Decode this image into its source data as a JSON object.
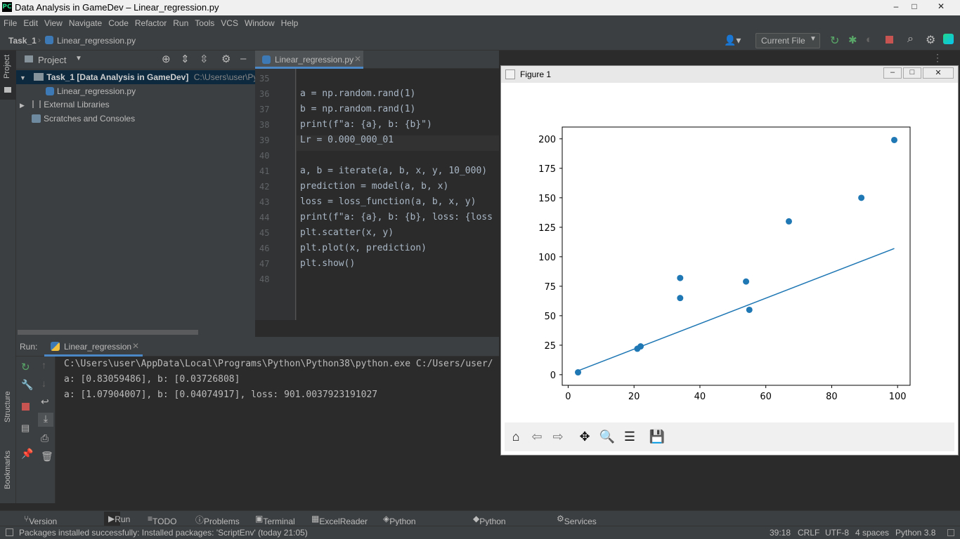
{
  "window": {
    "title": "Data Analysis in GameDev – Linear_regression.py",
    "min": "–",
    "max": "□",
    "close": "✕"
  },
  "menu": [
    "File",
    "Edit",
    "View",
    "Navigate",
    "Code",
    "Refactor",
    "Run",
    "Tools",
    "VCS",
    "Window",
    "Help"
  ],
  "nav": {
    "project": "Task_1",
    "file": "Linear_regression.py",
    "run_config": "Current File"
  },
  "project_panel": {
    "title": "Project",
    "items": [
      {
        "label": "Task_1 [Data Analysis in GameDev]",
        "path": "C:\\Users\\user\\Pych"
      },
      {
        "label": "Linear_regression.py"
      },
      {
        "label": "External Libraries"
      },
      {
        "label": "Scratches and Consoles"
      }
    ]
  },
  "left_strip": {
    "project": "Project",
    "structure": "Structure",
    "bookmarks": "Bookmarks"
  },
  "editor": {
    "tab": "Linear_regression.py",
    "lines": [
      {
        "n": "35",
        "code": ""
      },
      {
        "n": "36",
        "code": "a = np.random.rand(1)"
      },
      {
        "n": "37",
        "code": "b = np.random.rand(1)"
      },
      {
        "n": "38",
        "code": "print(f\"a: {a}, b: {b}\")"
      },
      {
        "n": "39",
        "code": "Lr = 0.000_000_01"
      },
      {
        "n": "40",
        "code": ""
      },
      {
        "n": "41",
        "code": "a, b = iterate(a, b, x, y, 10_000)"
      },
      {
        "n": "42",
        "code": "prediction = model(a, b, x)"
      },
      {
        "n": "43",
        "code": "loss = loss_function(a, b, x, y)"
      },
      {
        "n": "44",
        "code": "print(f\"a: {a}, b: {b}, loss: {loss"
      },
      {
        "n": "45",
        "code": "plt.scatter(x, y)"
      },
      {
        "n": "46",
        "code": "plt.plot(x, prediction)"
      },
      {
        "n": "47",
        "code": "plt.show()"
      },
      {
        "n": "48",
        "code": ""
      }
    ]
  },
  "run": {
    "label": "Run:",
    "tab": "Linear_regression",
    "output": [
      "C:\\Users\\user\\AppData\\Local\\Programs\\Python\\Python38\\python.exe C:/Users/user/",
      "a: [0.83059486], b: [0.03726808]",
      "a: [1.07904007], b: [0.04074917], loss: 901.0037923191027"
    ]
  },
  "figure": {
    "title": "Figure 1"
  },
  "chart_data": {
    "type": "scatter",
    "x": [
      3,
      21,
      22,
      34,
      34,
      54,
      55,
      67,
      89,
      99
    ],
    "y": [
      2,
      22,
      24,
      65,
      82,
      79,
      55,
      130,
      150,
      199
    ],
    "line": {
      "x": [
        3,
        99
      ],
      "y": [
        3.3,
        107
      ]
    },
    "xticks": [
      0,
      20,
      40,
      60,
      80,
      100
    ],
    "yticks": [
      0,
      25,
      50,
      75,
      100,
      125,
      150,
      175,
      200
    ],
    "xlim": [
      -1.8,
      103.8
    ],
    "ylim": [
      -9,
      210
    ],
    "color": "#1f77b4",
    "title": "",
    "xlabel": "",
    "ylabel": ""
  },
  "bottom_tabs": [
    "Version Control",
    "Run",
    "TODO",
    "Problems",
    "Terminal",
    "ExcelReader",
    "Python Packages",
    "Python Console",
    "Services"
  ],
  "status": {
    "message": "Packages installed successfully: Installed packages: 'ScriptEnv' (today 21:05)",
    "position": "39:18",
    "line_sep": "CRLF",
    "encoding": "UTF-8",
    "indent": "4 spaces",
    "interpreter": "Python 3.8"
  }
}
